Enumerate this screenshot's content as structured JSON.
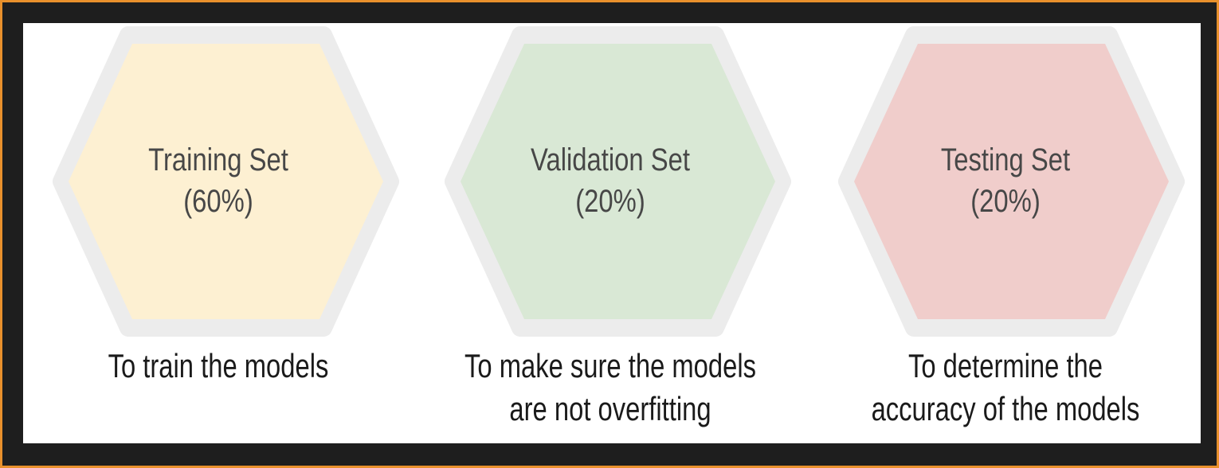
{
  "stages": [
    {
      "name": "Training Set",
      "percent": "(60%)",
      "caption_lines": [
        "To train the models"
      ],
      "fill_color": "#fdf0d2"
    },
    {
      "name": "Validation Set",
      "percent": "(20%)",
      "caption_lines": [
        "To make sure the models",
        "are not overfitting"
      ],
      "fill_color": "#d9e8d5"
    },
    {
      "name": "Testing Set",
      "percent": "(20%)",
      "caption_lines": [
        "To determine the",
        "accuracy of the models"
      ],
      "fill_color": "#f0cdcb"
    }
  ],
  "colors": {
    "frame_border": "#e8902c",
    "frame_background": "#1e1e1e",
    "panel_background": "#ffffff",
    "hex_outline": "#ececec"
  }
}
